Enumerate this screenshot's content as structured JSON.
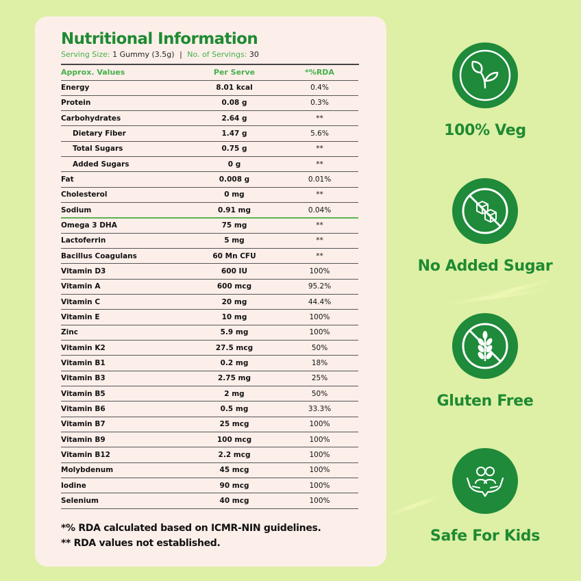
{
  "nutrition": {
    "title": "Nutritional Information",
    "serving_label": "Serving Size:",
    "serving_value": "1 Gummy (3.5g)",
    "separator": "|",
    "servings_label": "No. of Servings:",
    "servings_value": "30",
    "headers": [
      "Approx. Values",
      "Per Serve",
      "*%RDA"
    ],
    "rows": [
      {
        "name": "Energy",
        "value": "8.01 kcal",
        "rda": "0.4%"
      },
      {
        "name": "Protein",
        "value": "0.08 g",
        "rda": "0.3%"
      },
      {
        "name": "Carbohydrates",
        "value": "2.64 g",
        "rda": "**"
      },
      {
        "name": "Dietary Fiber",
        "value": "1.47 g",
        "rda": "5.6%"
      },
      {
        "name": "Total Sugars",
        "value": "0.75 g",
        "rda": "**"
      },
      {
        "name": "Added Sugars",
        "value": "0 g",
        "rda": "**"
      },
      {
        "name": "Fat",
        "value": "0.008 g",
        "rda": "0.01%"
      },
      {
        "name": "Cholesterol",
        "value": "0 mg",
        "rda": "**"
      },
      {
        "name": "Sodium",
        "value": "0.91 mg",
        "rda": "0.04%"
      },
      {
        "name": "Omega 3 DHA",
        "value": "75 mg",
        "rda": "**"
      },
      {
        "name": "Lactoferrin",
        "value": "5 mg",
        "rda": "**"
      },
      {
        "name": "Bacillus Coagulans",
        "value": "60 Mn CFU",
        "rda": "**"
      },
      {
        "name": "Vitamin D3",
        "value": "600 IU",
        "rda": "100%"
      },
      {
        "name": "Vitamin A",
        "value": "600 mcg",
        "rda": "95.2%"
      },
      {
        "name": "Vitamin C",
        "value": "20 mg",
        "rda": "44.4%"
      },
      {
        "name": "Vitamin E",
        "value": "10 mg",
        "rda": "100%"
      },
      {
        "name": "Zinc",
        "value": "5.9 mg",
        "rda": "100%"
      },
      {
        "name": "Vitamin K2",
        "value": "27.5 mcg",
        "rda": "50%"
      },
      {
        "name": "Vitamin B1",
        "value": "0.2 mg",
        "rda": "18%"
      },
      {
        "name": "Vitamin B3",
        "value": "2.75 mg",
        "rda": "25%"
      },
      {
        "name": "Vitamin B5",
        "value": "2 mg",
        "rda": "50%"
      },
      {
        "name": "Vitamin B6",
        "value": "0.5 mg",
        "rda": "33.3%"
      },
      {
        "name": "Vitamin B7",
        "value": "25 mcg",
        "rda": "100%"
      },
      {
        "name": "Vitamin B9",
        "value": "100 mcg",
        "rda": "100%"
      },
      {
        "name": "Vitamin B12",
        "value": "2.2 mcg",
        "rda": "100%"
      },
      {
        "name": "Molybdenum",
        "value": "45 mcg",
        "rda": "100%"
      },
      {
        "name": "Iodine",
        "value": "90 mcg",
        "rda": "100%"
      },
      {
        "name": "Selenium",
        "value": "40 mcg",
        "rda": "100%"
      }
    ],
    "note1": "*% RDA calculated based on ICMR-NIN guidelines.",
    "note2": "** RDA values not established."
  },
  "features": [
    {
      "label": "100% Veg",
      "icon": "leaf-icon"
    },
    {
      "label": "No Added Sugar",
      "icon": "no-sugar-cubes-icon"
    },
    {
      "label": "Gluten Free",
      "icon": "no-wheat-icon"
    },
    {
      "label": "Safe For Kids",
      "icon": "kids-in-hands-icon"
    }
  ],
  "colors": {
    "background": "#ddf0a6",
    "card": "#fcefea",
    "brand_green": "#1f8a32",
    "accent_green": "#44b04a",
    "icon_circle": "#1e8a3a"
  }
}
